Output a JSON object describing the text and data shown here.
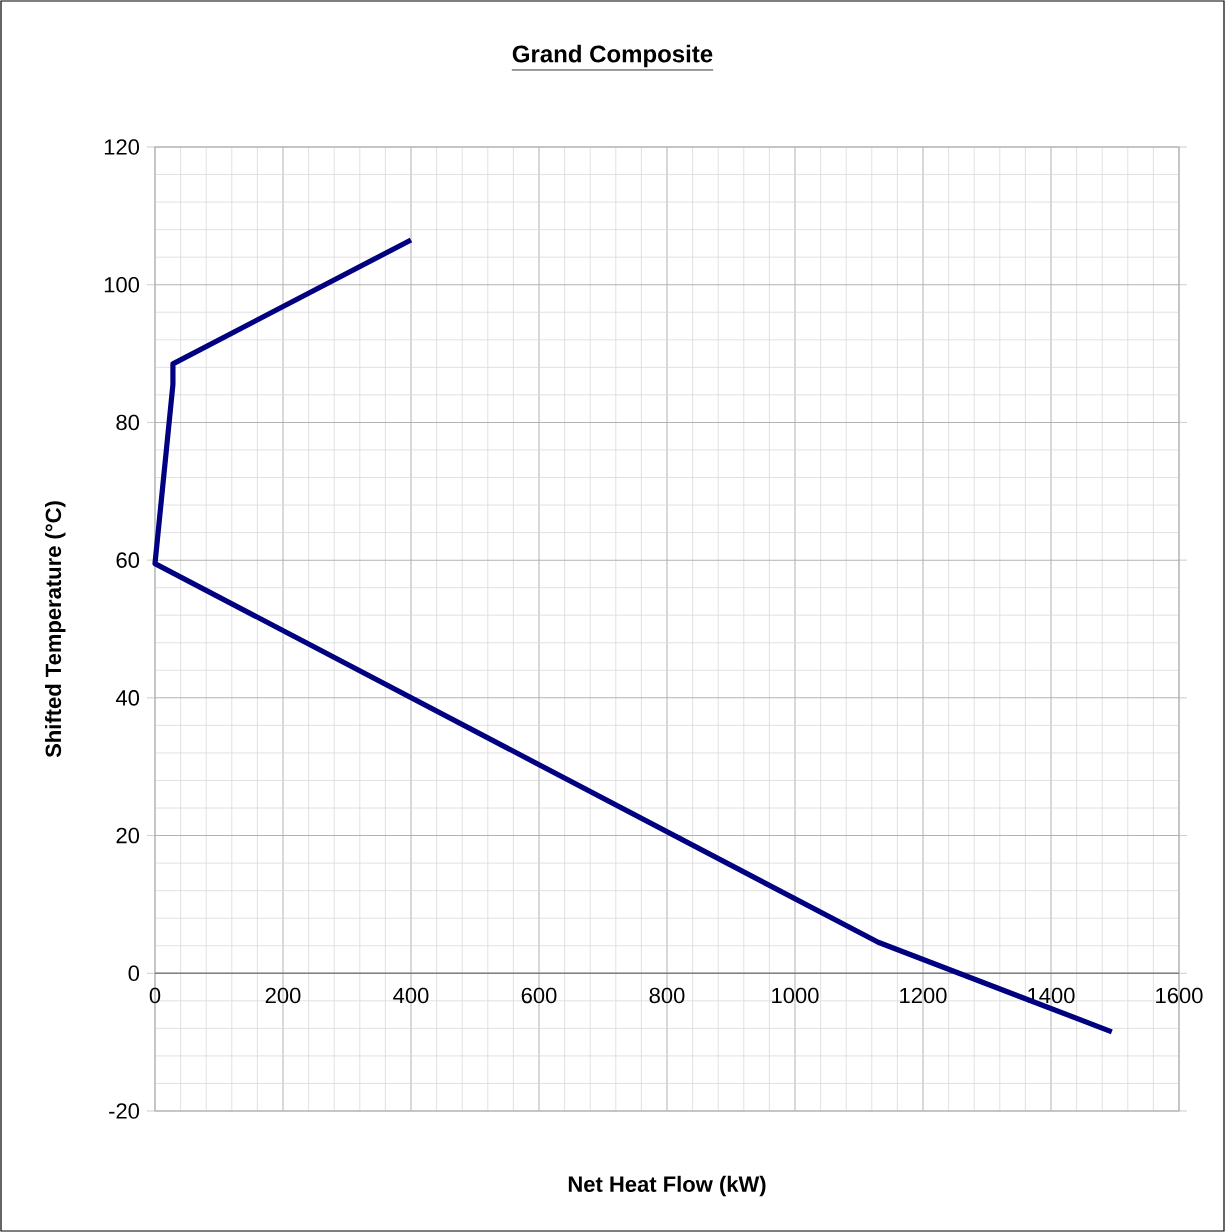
{
  "chart_data": {
    "type": "line",
    "title": "Grand Composite",
    "xlabel": "Net Heat Flow (kW)",
    "ylabel": "Shifted Temperature (°C)",
    "x": [
      400,
      28,
      28,
      0,
      1130,
      1495
    ],
    "series": [
      {
        "color": "#000080",
        "values": [
          106.5,
          88.5,
          85.5,
          59.5,
          4.5,
          -8.5
        ]
      }
    ],
    "xlim": [
      0,
      1600
    ],
    "xticks": [
      0,
      200,
      400,
      600,
      800,
      1000,
      1200,
      1400,
      1600
    ],
    "ylim": [
      -20,
      120
    ],
    "yticks": [
      -20,
      0,
      20,
      40,
      60,
      80,
      100,
      120
    ],
    "grid": true,
    "line_style": "solid",
    "marker": "none"
  }
}
